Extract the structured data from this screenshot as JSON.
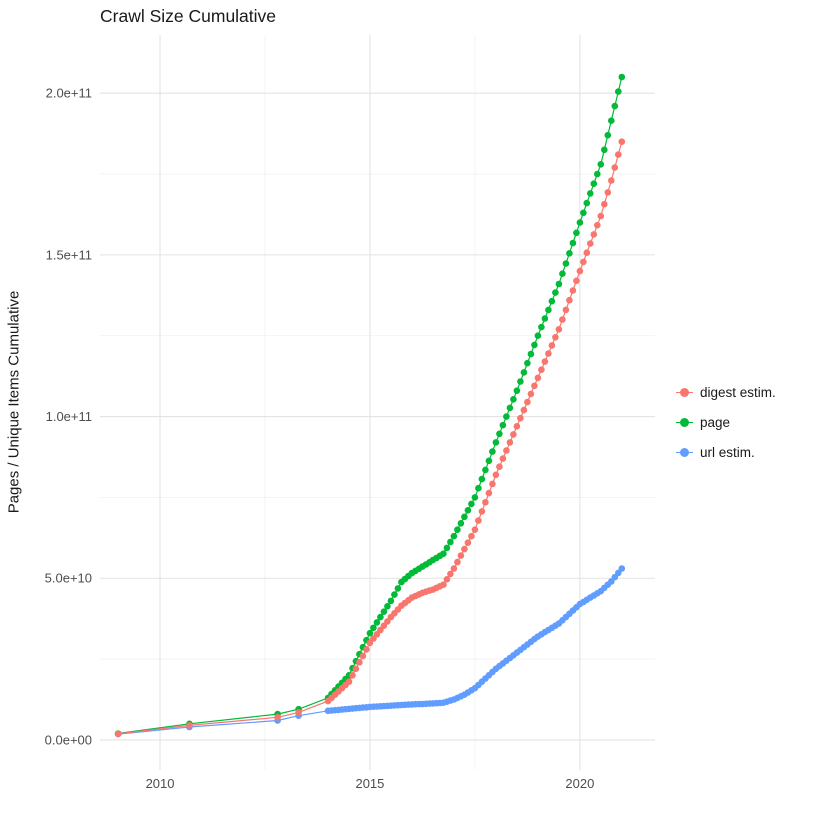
{
  "chart_data": {
    "type": "line-scatter",
    "title": "Crawl Size Cumulative",
    "xlabel": "",
    "ylabel": "Pages / Unique Items Cumulative",
    "xlim": [
      2008.57,
      2021.79
    ],
    "ylim": [
      -9300000000.0,
      218000000000.0
    ],
    "grid": true,
    "legend_position": "right",
    "x_ticks": [
      {
        "value": 2010,
        "label": "2010"
      },
      {
        "value": 2015,
        "label": "2015"
      },
      {
        "value": 2020,
        "label": "2020"
      }
    ],
    "x_minor": [
      2012.5,
      2017.5
    ],
    "y_ticks": [
      {
        "value": 0,
        "label": "0.0e+00"
      },
      {
        "value": 50000000000.0,
        "label": "5.0e+10"
      },
      {
        "value": 100000000000.0,
        "label": "1.0e+11"
      },
      {
        "value": 150000000000.0,
        "label": "1.5e+11"
      },
      {
        "value": 200000000000.0,
        "label": "2.0e+11"
      }
    ],
    "y_minor": [
      25000000000.0,
      75000000000.0,
      125000000000.0,
      175000000000.0
    ],
    "dense_from": 2014,
    "point_interval_months": 1,
    "series": [
      {
        "name": "digest estim.",
        "color": "#F8766D",
        "x": [
          2009,
          2010.7,
          2012.8,
          2013.3,
          2014,
          2014.25,
          2014.5,
          2014.75,
          2015,
          2015.25,
          2015.5,
          2015.75,
          2016,
          2016.25,
          2016.5,
          2016.75,
          2017,
          2017.25,
          2017.5,
          2017.75,
          2018,
          2018.25,
          2018.5,
          2018.75,
          2019,
          2019.25,
          2019.5,
          2019.75,
          2020,
          2020.25,
          2020.5,
          2020.75,
          2021
        ],
        "y": [
          1900000000.0,
          4500000000.0,
          7000000000.0,
          8500000000.0,
          12000000000.0,
          15000000000.0,
          18000000000.0,
          24000000000.0,
          30000000000.0,
          34000000000.0,
          38000000000.0,
          41500000000.0,
          44000000000.0,
          45500000000.0,
          46500000000.0,
          48000000000.0,
          53000000000.0,
          59000000000.0,
          65000000000.0,
          73500000000.0,
          82000000000.0,
          89500000000.0,
          97000000000.0,
          104500000000.0,
          112000000000.0,
          119500000000.0,
          127000000000.0,
          136000000000.0,
          145000000000.0,
          153500000000.0,
          162000000000.0,
          173000000000.0,
          185000000000.0
        ]
      },
      {
        "name": "page",
        "color": "#00BA38",
        "x": [
          2009,
          2010.7,
          2012.8,
          2013.3,
          2014,
          2014.25,
          2014.5,
          2014.75,
          2015,
          2015.25,
          2015.5,
          2015.75,
          2016,
          2016.25,
          2016.5,
          2016.75,
          2017,
          2017.25,
          2017.5,
          2017.75,
          2018,
          2018.25,
          2018.5,
          2018.75,
          2019,
          2019.25,
          2019.5,
          2019.75,
          2020,
          2020.25,
          2020.5,
          2020.75,
          2021
        ],
        "y": [
          2000000000.0,
          5000000000.0,
          8000000000.0,
          9500000000.0,
          13000000000.0,
          16500000000.0,
          20000000000.0,
          26500000000.0,
          33000000000.0,
          38000000000.0,
          43000000000.0,
          48800000000.0,
          51600000000.0,
          53600000000.0,
          55600000000.0,
          57600000000.0,
          63000000000.0,
          69000000000.0,
          75000000000.0,
          83500000000.0,
          92000000000.0,
          100000000000.0,
          108000000000.0,
          116500000000.0,
          125000000000.0,
          133000000000.0,
          141000000000.0,
          150500000000.0,
          160000000000.0,
          169000000000.0,
          178000000000.0,
          191500000000.0,
          205000000000.0
        ]
      },
      {
        "name": "url estim.",
        "color": "#619CFF",
        "x": [
          2009,
          2010.7,
          2012.8,
          2013.3,
          2014,
          2014.25,
          2014.5,
          2014.75,
          2015,
          2015.25,
          2015.5,
          2015.75,
          2016,
          2016.25,
          2016.5,
          2016.75,
          2017,
          2017.25,
          2017.5,
          2017.75,
          2018,
          2018.25,
          2018.5,
          2018.75,
          2019,
          2019.25,
          2019.5,
          2019.75,
          2020,
          2020.25,
          2020.5,
          2020.75,
          2021
        ],
        "y": [
          1800000000.0,
          4000000000.0,
          6000000000.0,
          7500000000.0,
          9000000000.0,
          9300000000.0,
          9600000000.0,
          9900000000.0,
          10200000000.0,
          10400000000.0,
          10600000000.0,
          10800000000.0,
          11000000000.0,
          11100000000.0,
          11300000000.0,
          11500000000.0,
          12500000000.0,
          14000000000.0,
          16000000000.0,
          19000000000.0,
          22000000000.0,
          24500000000.0,
          27000000000.0,
          29500000000.0,
          32000000000.0,
          34000000000.0,
          36000000000.0,
          39000000000.0,
          42000000000.0,
          44000000000.0,
          46000000000.0,
          49000000000.0,
          53000000000.0
        ]
      }
    ]
  },
  "colors": {
    "grid_major": "#e3e3e3",
    "grid_minor": "#f1f1f1",
    "tick_label": "#4d4d4d",
    "title": "#1a1a1a",
    "background": "#ffffff"
  }
}
